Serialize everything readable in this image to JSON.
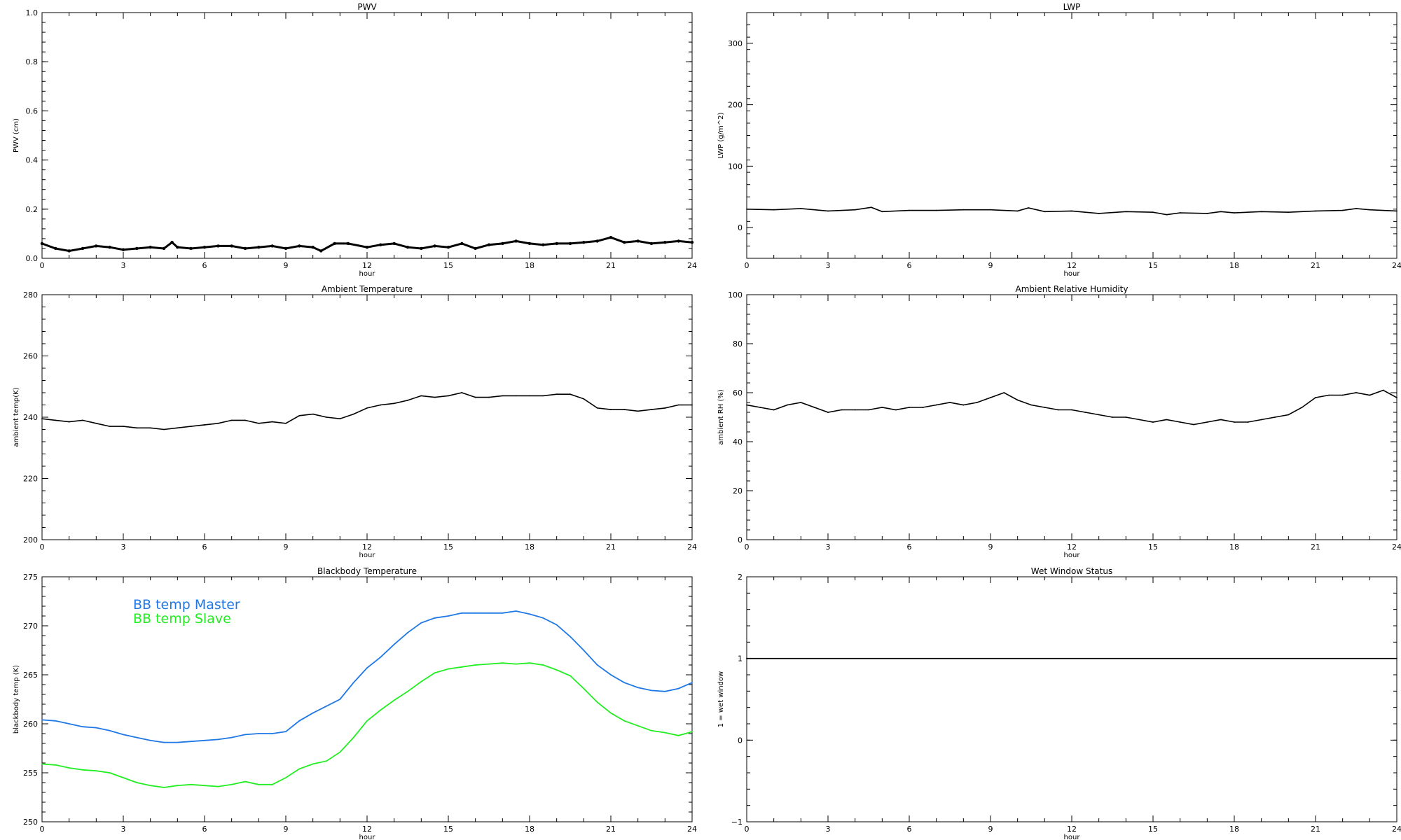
{
  "figure": {
    "background": "#ffffff",
    "axis_color": "#000000"
  },
  "chart_data": [
    {
      "type": "line",
      "title": "PWV",
      "xlabel": "hour",
      "ylabel": "PWV (cm)",
      "xlim": [
        0,
        24
      ],
      "ylim": [
        0,
        1.0
      ],
      "xticks": [
        "0",
        "3",
        "6",
        "9",
        "12",
        "15",
        "18",
        "21",
        "24"
      ],
      "yticks": [
        "0.0",
        "0.2",
        "0.4",
        "0.6",
        "0.8",
        "1.0"
      ],
      "grid": false,
      "marker": "small-cross",
      "series": [
        {
          "color": "#000000",
          "x": [
            0,
            0.5,
            1,
            1.5,
            2,
            2.5,
            3,
            3.5,
            4,
            4.5,
            4.8,
            5,
            5.5,
            6,
            6.5,
            7,
            7.5,
            8,
            8.5,
            9,
            9.5,
            10,
            10.3,
            10.8,
            11.3,
            12,
            12.5,
            13,
            13.5,
            14,
            14.5,
            15,
            15.5,
            16,
            16.5,
            17,
            17.5,
            18,
            18.5,
            19,
            19.5,
            20,
            20.5,
            21,
            21.5,
            22,
            22.5,
            23,
            23.5,
            24
          ],
          "y": [
            0.06,
            0.04,
            0.03,
            0.04,
            0.05,
            0.045,
            0.035,
            0.04,
            0.045,
            0.04,
            0.065,
            0.045,
            0.04,
            0.045,
            0.05,
            0.05,
            0.04,
            0.045,
            0.05,
            0.04,
            0.05,
            0.045,
            0.03,
            0.06,
            0.06,
            0.045,
            0.055,
            0.06,
            0.045,
            0.04,
            0.05,
            0.045,
            0.06,
            0.04,
            0.055,
            0.06,
            0.07,
            0.06,
            0.055,
            0.06,
            0.06,
            0.065,
            0.07,
            0.085,
            0.065,
            0.07,
            0.06,
            0.065,
            0.07,
            0.065
          ]
        }
      ]
    },
    {
      "type": "line",
      "title": "LWP",
      "xlabel": "hour",
      "ylabel": "LWP (g/m^2)",
      "xlim": [
        0,
        24
      ],
      "ylim": [
        -50,
        350
      ],
      "xticks": [
        "0",
        "3",
        "6",
        "9",
        "12",
        "15",
        "18",
        "21",
        "24"
      ],
      "yticks": [
        "0",
        "100",
        "200",
        "300"
      ],
      "grid": false,
      "series": [
        {
          "color": "#000000",
          "x": [
            0,
            1,
            2,
            3,
            4,
            4.6,
            5,
            6,
            7,
            8,
            9,
            10,
            10.4,
            11,
            12,
            13,
            14,
            15,
            15.5,
            16,
            17,
            17.5,
            18,
            19,
            20,
            21,
            22,
            22.5,
            23,
            24
          ],
          "y": [
            30,
            29,
            31,
            27,
            29,
            33,
            26,
            28,
            28,
            29,
            29,
            27,
            32,
            26,
            27,
            23,
            26,
            25,
            21,
            24,
            23,
            26,
            24,
            26,
            25,
            27,
            28,
            31,
            29,
            27
          ]
        }
      ]
    },
    {
      "type": "line",
      "title": "Ambient Temperature",
      "xlabel": "hour",
      "ylabel": "ambient temp(K)",
      "xlim": [
        0,
        24
      ],
      "ylim": [
        200,
        280
      ],
      "xticks": [
        "0",
        "3",
        "6",
        "9",
        "12",
        "15",
        "18",
        "21",
        "24"
      ],
      "yticks": [
        "200",
        "220",
        "240",
        "260",
        "280"
      ],
      "grid": false,
      "series": [
        {
          "color": "#000000",
          "x": [
            0,
            0.5,
            1,
            1.5,
            2,
            2.5,
            3,
            3.5,
            4,
            4.5,
            5,
            5.5,
            6,
            6.5,
            7,
            7.5,
            8,
            8.5,
            9,
            9.5,
            10,
            10.5,
            11,
            11.5,
            12,
            12.5,
            13,
            13.5,
            14,
            14.5,
            15,
            15.5,
            16,
            16.5,
            17,
            17.5,
            18,
            18.5,
            19,
            19.5,
            20,
            20.5,
            21,
            21.5,
            22,
            22.5,
            23,
            23.5,
            24
          ],
          "y": [
            239.5,
            239,
            238.5,
            239,
            238,
            237,
            237,
            236.5,
            236.5,
            236,
            236.5,
            237,
            237.5,
            238,
            239,
            239,
            238,
            238.5,
            238,
            240.5,
            241,
            240,
            239.5,
            241,
            243,
            244,
            244.5,
            245.5,
            247,
            246.5,
            247,
            248,
            246.5,
            246.5,
            247,
            247,
            247,
            247,
            247.5,
            247.5,
            246,
            243,
            242.5,
            242.5,
            242,
            242.5,
            243,
            244,
            244
          ]
        }
      ]
    },
    {
      "type": "line",
      "title": "Ambient Relative Humidity",
      "xlabel": "hour",
      "ylabel": "ambient RH (%)",
      "xlim": [
        0,
        24
      ],
      "ylim": [
        0,
        100
      ],
      "xticks": [
        "0",
        "3",
        "6",
        "9",
        "12",
        "15",
        "18",
        "21",
        "24"
      ],
      "yticks": [
        "0",
        "20",
        "40",
        "60",
        "80",
        "100"
      ],
      "grid": false,
      "series": [
        {
          "color": "#000000",
          "x": [
            0,
            0.5,
            1,
            1.5,
            2,
            2.5,
            3,
            3.5,
            4,
            4.5,
            5,
            5.5,
            6,
            6.5,
            7,
            7.5,
            8,
            8.5,
            9,
            9.5,
            10,
            10.5,
            11,
            11.5,
            12,
            12.5,
            13,
            13.5,
            14,
            14.5,
            15,
            15.5,
            16,
            16.5,
            17,
            17.5,
            18,
            18.5,
            19,
            19.5,
            20,
            20.5,
            21,
            21.5,
            22,
            22.5,
            23,
            23.5,
            24
          ],
          "y": [
            55,
            54,
            53,
            55,
            56,
            54,
            52,
            53,
            53,
            53,
            54,
            53,
            54,
            54,
            55,
            56,
            55,
            56,
            58,
            60,
            57,
            55,
            54,
            53,
            53,
            52,
            51,
            50,
            50,
            49,
            48,
            49,
            48,
            47,
            48,
            49,
            48,
            48,
            49,
            50,
            51,
            54,
            58,
            59,
            59,
            60,
            59,
            61,
            58
          ]
        }
      ]
    },
    {
      "type": "line",
      "title": "Blackbody Temperature",
      "xlabel": "hour",
      "ylabel": "blackbody temp (K)",
      "xlim": [
        0,
        24
      ],
      "ylim": [
        250,
        275
      ],
      "xticks": [
        "0",
        "3",
        "6",
        "9",
        "12",
        "15",
        "18",
        "21",
        "24"
      ],
      "yticks": [
        "250",
        "255",
        "260",
        "265",
        "270",
        "275"
      ],
      "grid": false,
      "legend": "top-left",
      "series": [
        {
          "name": "BB temp Master",
          "color": "#1f78e6",
          "x": [
            0,
            0.5,
            1,
            1.5,
            2,
            2.5,
            3,
            3.5,
            4,
            4.5,
            5,
            5.5,
            6,
            6.5,
            7,
            7.5,
            8,
            8.5,
            9,
            9.5,
            10,
            10.5,
            11,
            11.5,
            12,
            12.5,
            13,
            13.5,
            14,
            14.5,
            15,
            15.5,
            16,
            16.5,
            17,
            17.5,
            18,
            18.5,
            19,
            19.5,
            20,
            20.5,
            21,
            21.5,
            22,
            22.5,
            23,
            23.5,
            24
          ],
          "y": [
            260.4,
            260.3,
            260,
            259.7,
            259.6,
            259.3,
            258.9,
            258.6,
            258.3,
            258.1,
            258.1,
            258.2,
            258.3,
            258.4,
            258.6,
            258.9,
            259,
            259,
            259.2,
            260.3,
            261.1,
            261.8,
            262.5,
            264.2,
            265.7,
            266.8,
            268.1,
            269.3,
            270.3,
            270.8,
            271,
            271.3,
            271.3,
            271.3,
            271.3,
            271.5,
            271.2,
            270.8,
            270.1,
            268.9,
            267.5,
            266,
            265,
            264.2,
            263.7,
            263.4,
            263.3,
            263.6,
            264.2
          ]
        },
        {
          "name": "BB temp Slave",
          "color": "#22ee22",
          "x": [
            0,
            0.5,
            1,
            1.5,
            2,
            2.5,
            3,
            3.5,
            4,
            4.5,
            5,
            5.5,
            6,
            6.5,
            7,
            7.5,
            8,
            8.5,
            9,
            9.5,
            10,
            10.5,
            11,
            11.5,
            12,
            12.5,
            13,
            13.5,
            14,
            14.5,
            15,
            15.5,
            16,
            16.5,
            17,
            17.5,
            18,
            18.5,
            19,
            19.5,
            20,
            20.5,
            21,
            21.5,
            22,
            22.5,
            23,
            23.5,
            24
          ],
          "y": [
            255.9,
            255.8,
            255.5,
            255.3,
            255.2,
            255,
            254.5,
            254,
            253.7,
            253.5,
            253.7,
            253.8,
            253.7,
            253.6,
            253.8,
            254.1,
            253.8,
            253.8,
            254.5,
            255.4,
            255.9,
            256.2,
            257.1,
            258.6,
            260.3,
            261.4,
            262.4,
            263.3,
            264.3,
            265.2,
            265.6,
            265.8,
            266,
            266.1,
            266.2,
            266.1,
            266.2,
            266,
            265.5,
            264.9,
            263.6,
            262.2,
            261.1,
            260.3,
            259.8,
            259.3,
            259.1,
            258.8,
            259.2
          ]
        }
      ]
    },
    {
      "type": "line",
      "title": "Wet Window Status",
      "xlabel": "hour",
      "ylabel": "1 = wet window",
      "xlim": [
        0,
        24
      ],
      "ylim": [
        -1,
        2
      ],
      "xticks": [
        "0",
        "3",
        "6",
        "9",
        "12",
        "15",
        "18",
        "21",
        "24"
      ],
      "yticks": [
        "−1",
        "0",
        "1",
        "2"
      ],
      "grid": false,
      "series": [
        {
          "color": "#000000",
          "x": [
            0,
            24
          ],
          "y": [
            1,
            1
          ]
        }
      ]
    }
  ]
}
